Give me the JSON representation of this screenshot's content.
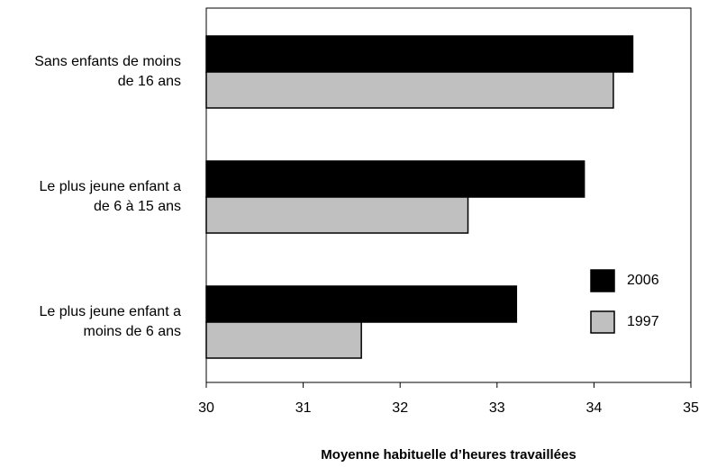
{
  "chart_data": {
    "type": "bar",
    "orientation": "horizontal",
    "categories": [
      [
        "Sans enfants de moins",
        "de 16 ans"
      ],
      [
        "Le plus jeune enfant a",
        "de 6 à 15 ans"
      ],
      [
        "Le plus jeune enfant a",
        "moins de 6 ans"
      ]
    ],
    "series": [
      {
        "name": "2006",
        "color": "#000000",
        "values": [
          34.4,
          33.9,
          33.2
        ]
      },
      {
        "name": "1997",
        "color": "#c0c0c0",
        "values": [
          34.2,
          32.7,
          31.6
        ]
      }
    ],
    "xlim": [
      30,
      35
    ],
    "xticks": [
      "30",
      "31",
      "32",
      "33",
      "34",
      "35"
    ],
    "xlabel": "Moyenne habituelle d’heures travaillées",
    "ylabel": "",
    "title": "",
    "grid": false,
    "legend_position": "right"
  }
}
